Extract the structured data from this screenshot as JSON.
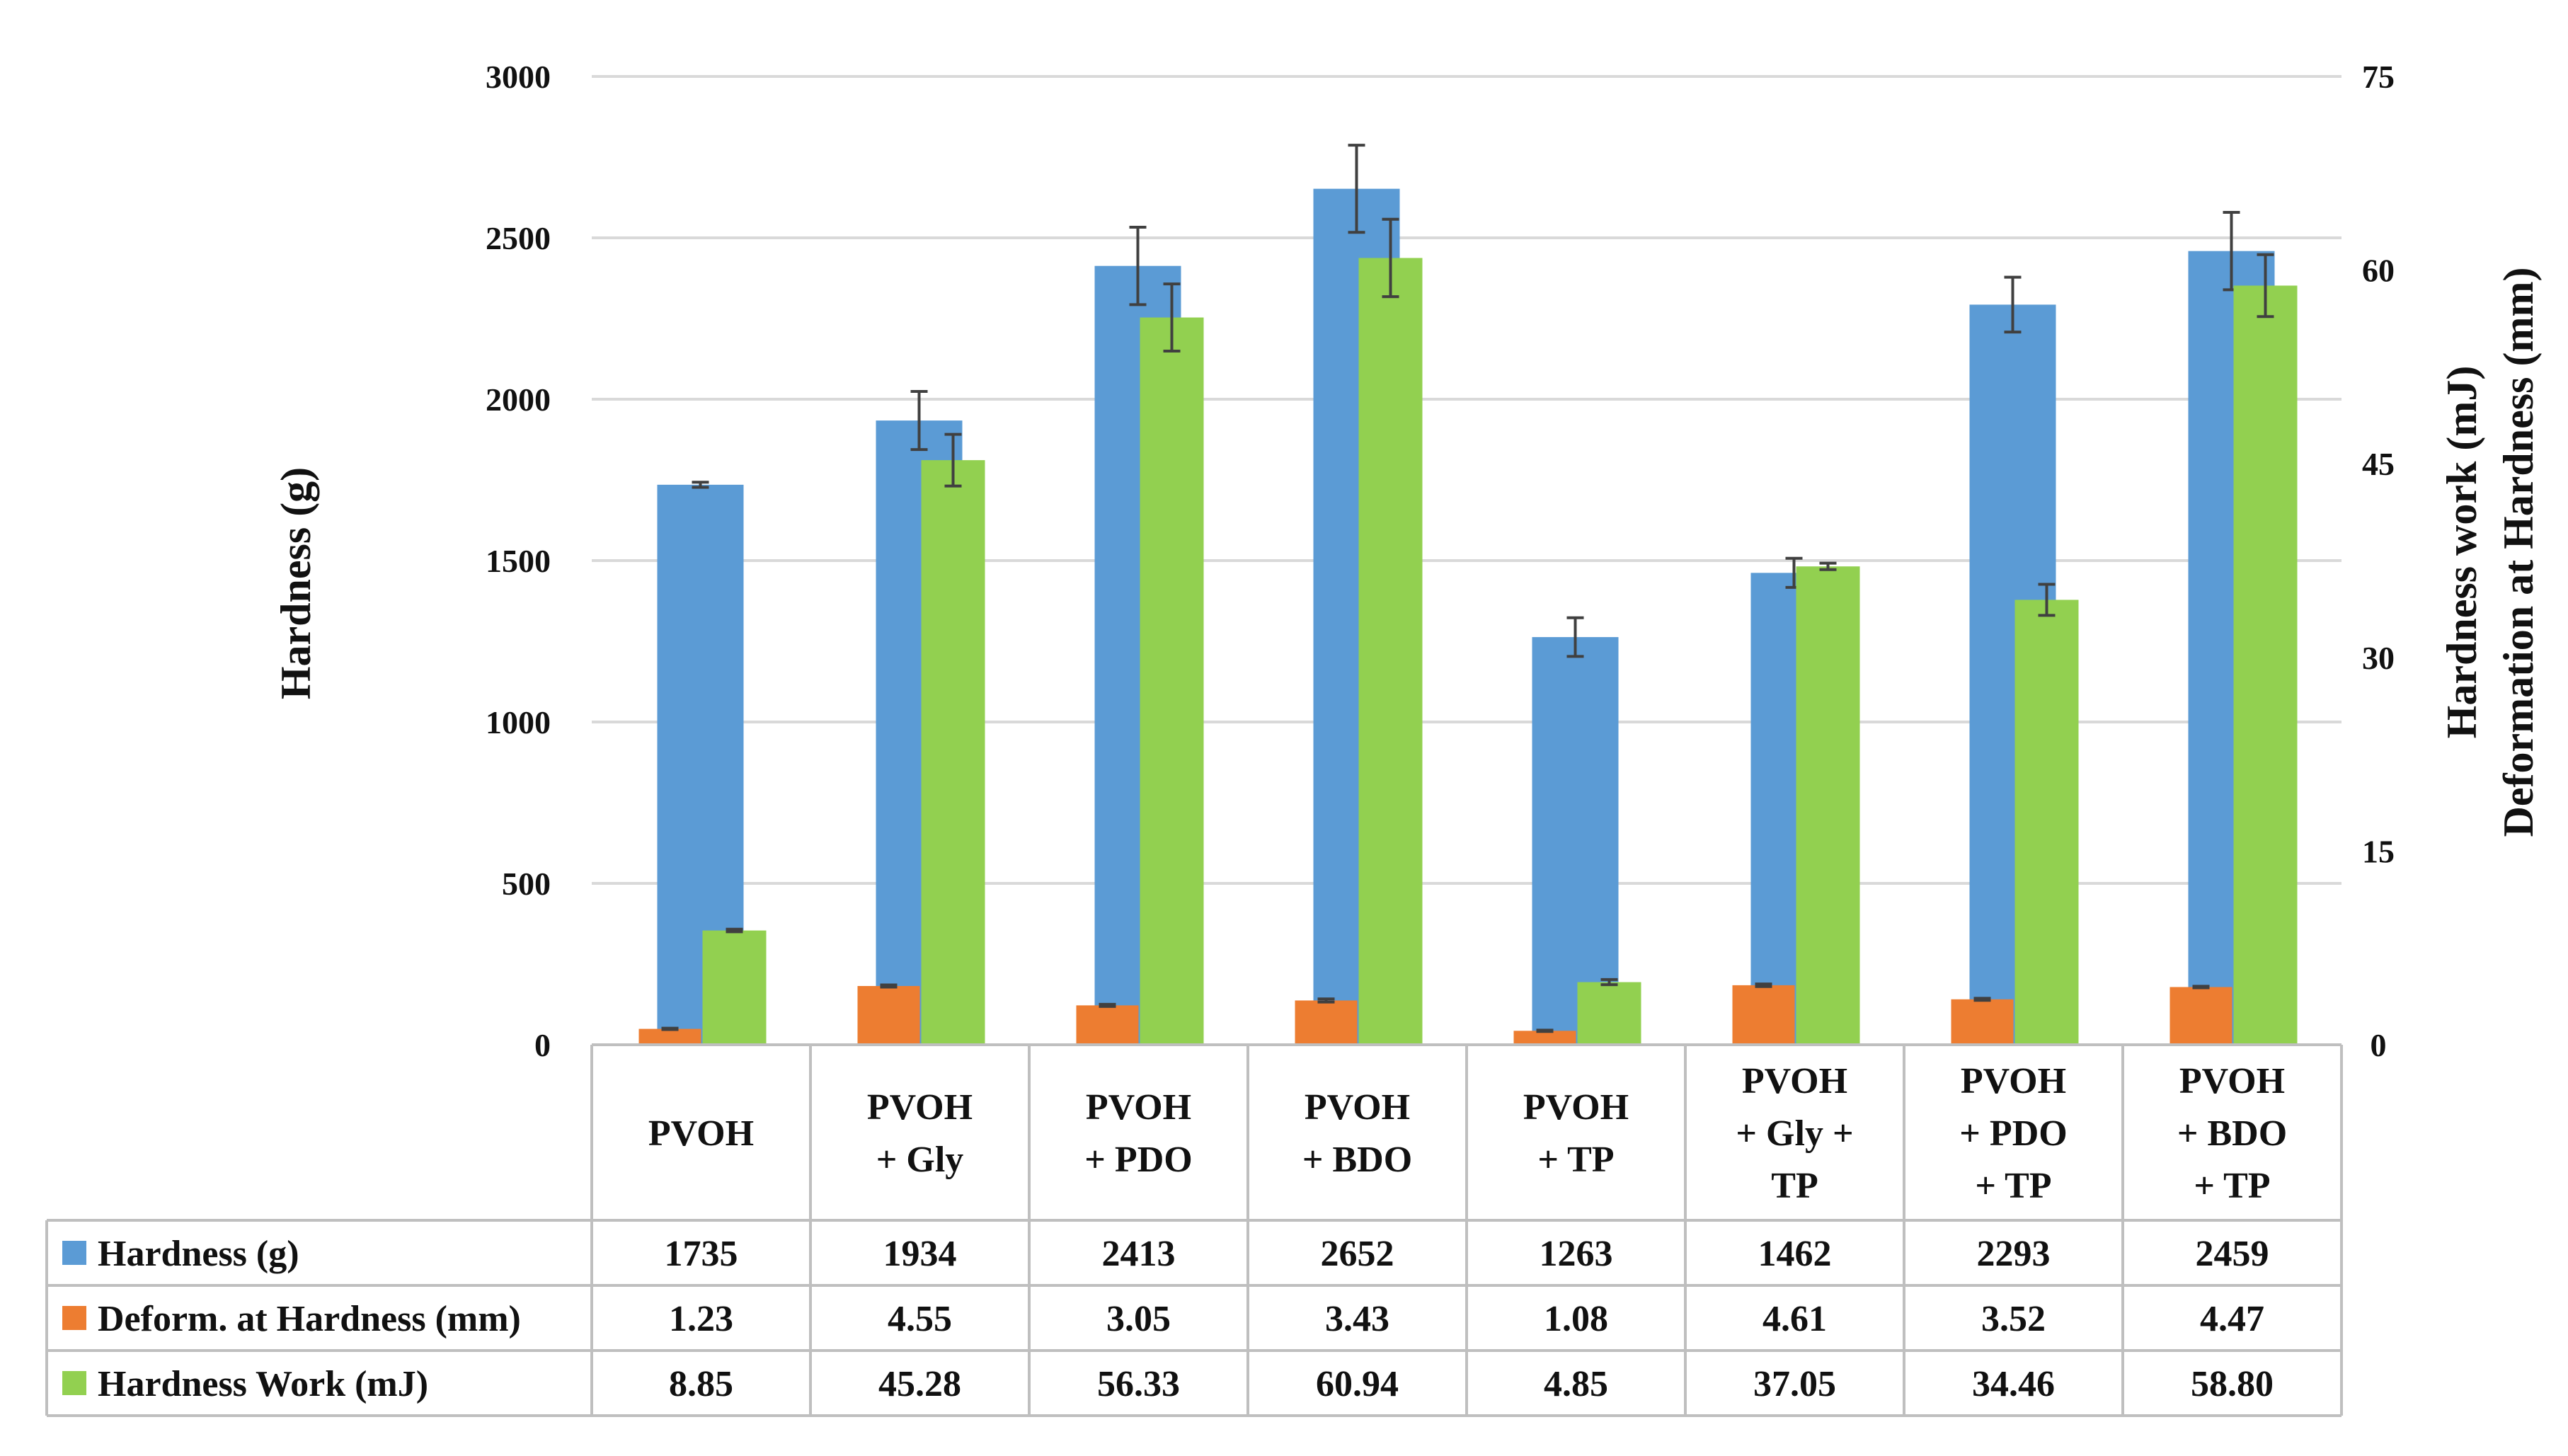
{
  "chart_data": {
    "type": "bar",
    "categories": [
      [
        "PVOH"
      ],
      [
        "PVOH",
        "+ Gly"
      ],
      [
        "PVOH",
        "+ PDO"
      ],
      [
        "PVOH",
        "+ BDO"
      ],
      [
        "PVOH",
        "+ TP"
      ],
      [
        "PVOH",
        "+ Gly +",
        "TP"
      ],
      [
        "PVOH",
        "+ PDO",
        "+ TP"
      ],
      [
        "PVOH",
        "+ BDO",
        "+ TP"
      ]
    ],
    "series": [
      {
        "name": "Hardness (g)",
        "axis": "left",
        "color": "#5B9BD5",
        "values": [
          1735,
          1934,
          2413,
          2652,
          1263,
          1462,
          2293,
          2459
        ],
        "labels": [
          "1735",
          "1934",
          "2413",
          "2652",
          "1263",
          "1462",
          "2293",
          "2459"
        ],
        "errors": [
          8,
          90,
          120,
          135,
          60,
          45,
          85,
          120
        ]
      },
      {
        "name": "Deform. at Hardness  (mm)",
        "axis": "right",
        "color": "#ED7D31",
        "values": [
          1.23,
          4.55,
          3.05,
          3.43,
          1.08,
          4.61,
          3.52,
          4.47
        ],
        "labels": [
          "1.23",
          "4.55",
          "3.05",
          "3.43",
          "1.08",
          "4.61",
          "3.52",
          "4.47"
        ],
        "errors": [
          0.05,
          0.08,
          0.08,
          0.12,
          0.05,
          0.1,
          0.08,
          0.06
        ]
      },
      {
        "name": "Hardness Work (mJ)",
        "axis": "right",
        "color": "#92D050",
        "values": [
          8.85,
          45.28,
          56.33,
          60.94,
          4.85,
          37.05,
          34.46,
          58.8
        ],
        "labels": [
          "8.85",
          "45.28",
          "56.33",
          "60.94",
          "4.85",
          "37.05",
          "34.46",
          "58.80"
        ],
        "errors": [
          0.1,
          2.0,
          2.6,
          3.0,
          0.2,
          0.25,
          1.2,
          2.4
        ]
      }
    ],
    "y_left": {
      "label": "Hardness (g)",
      "range": [
        0,
        3000
      ],
      "ticks": [
        "0",
        "500",
        "1000",
        "1500",
        "2000",
        "2500",
        "3000"
      ],
      "color": "#5B9BD5"
    },
    "y_right": {
      "label_top": "Hardness work (mJ)",
      "label_top_color": "#70AD47",
      "label_bottom": "Deformation at Hardness (mm)",
      "label_bottom_color": "#ED7D31",
      "range": [
        0,
        75
      ],
      "ticks": [
        "0",
        "15",
        "30",
        "45",
        "60",
        "75"
      ]
    },
    "grid": true,
    "legend": "data-table"
  }
}
